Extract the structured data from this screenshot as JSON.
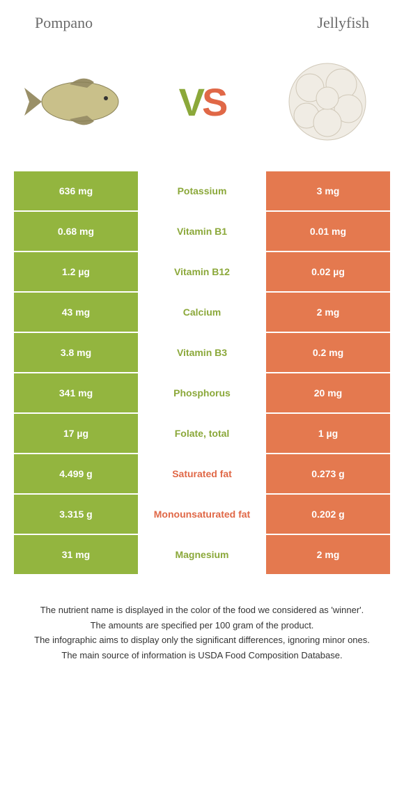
{
  "header": {
    "left_title": "Pompano",
    "right_title": "Jellyfish"
  },
  "vs": {
    "v": "V",
    "s": "S"
  },
  "colors": {
    "green": "#93b53f",
    "orange": "#e4794f",
    "green_text": "#8ba83a",
    "orange_text": "#e06847"
  },
  "rows": [
    {
      "left": "636 mg",
      "mid": "Potassium",
      "right": "3 mg",
      "mid_color": "green"
    },
    {
      "left": "0.68 mg",
      "mid": "Vitamin B1",
      "right": "0.01 mg",
      "mid_color": "green"
    },
    {
      "left": "1.2 µg",
      "mid": "Vitamin B12",
      "right": "0.02 µg",
      "mid_color": "green"
    },
    {
      "left": "43 mg",
      "mid": "Calcium",
      "right": "2 mg",
      "mid_color": "green"
    },
    {
      "left": "3.8 mg",
      "mid": "Vitamin B3",
      "right": "0.2 mg",
      "mid_color": "green"
    },
    {
      "left": "341 mg",
      "mid": "Phosphorus",
      "right": "20 mg",
      "mid_color": "green"
    },
    {
      "left": "17 µg",
      "mid": "Folate, total",
      "right": "1 µg",
      "mid_color": "green"
    },
    {
      "left": "4.499 g",
      "mid": "Saturated fat",
      "right": "0.273 g",
      "mid_color": "orange"
    },
    {
      "left": "3.315 g",
      "mid": "Monounsaturated fat",
      "right": "0.202 g",
      "mid_color": "orange"
    },
    {
      "left": "31 mg",
      "mid": "Magnesium",
      "right": "2 mg",
      "mid_color": "green"
    }
  ],
  "footnotes": {
    "line1": "The nutrient name is displayed in the color of the food we considered as 'winner'.",
    "line2": "The amounts are specified per 100 gram of the product.",
    "line3": "The infographic aims to display only the significant differences, ignoring minor ones.",
    "line4": "The main source of information is USDA Food Composition Database."
  }
}
